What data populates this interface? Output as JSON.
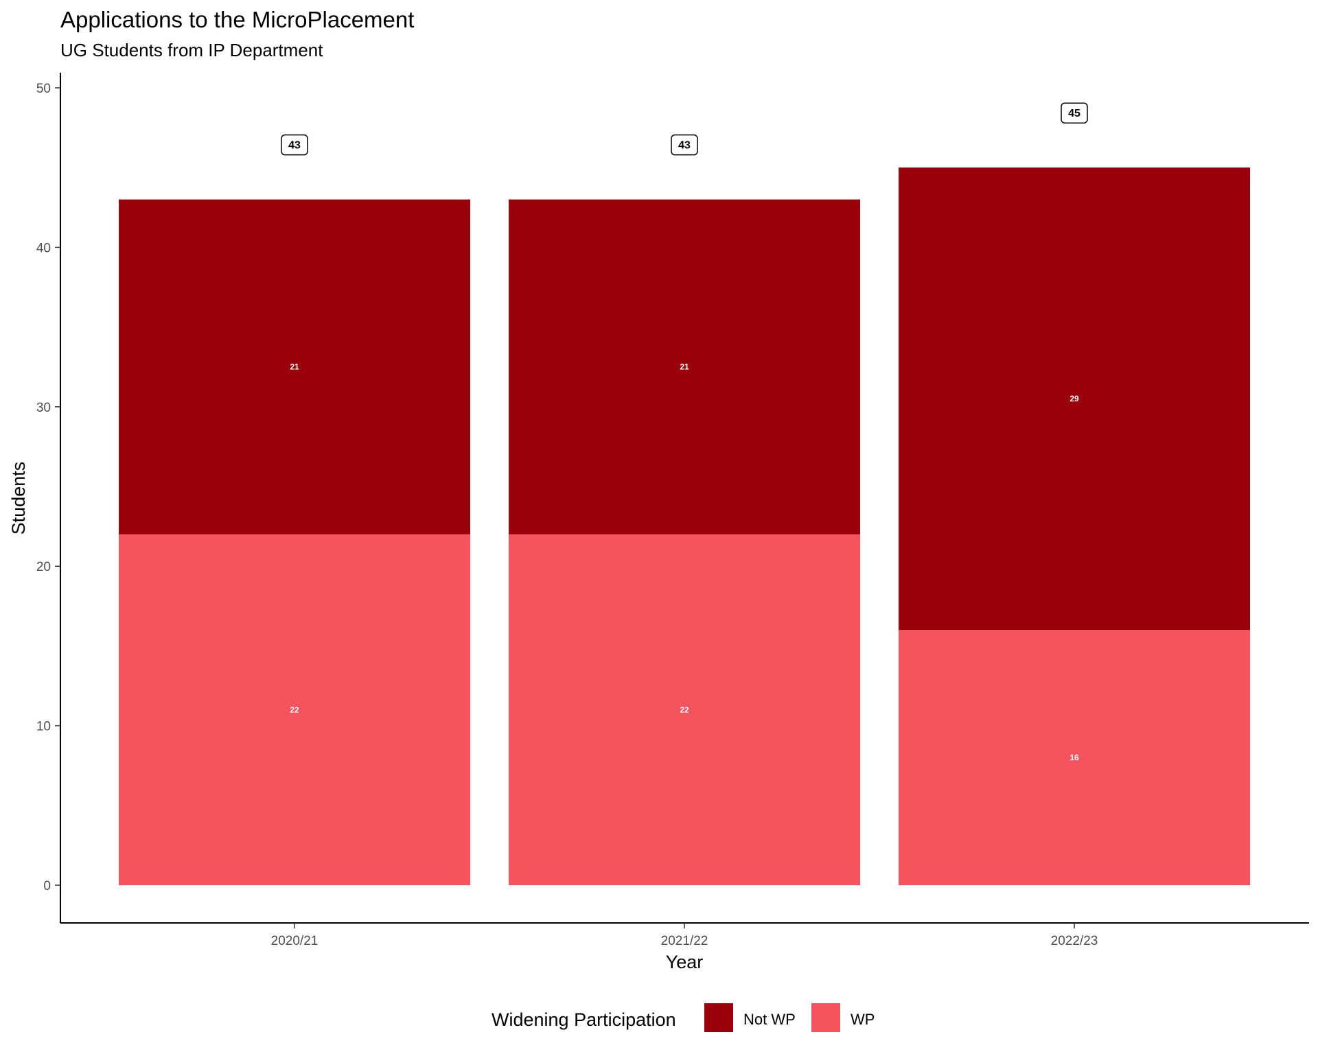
{
  "chart_data": {
    "type": "bar",
    "stacked": true,
    "title": "Applications to the MicroPlacement",
    "subtitle": "UG Students from IP Department",
    "xlabel": "Year",
    "ylabel": "Students",
    "categories": [
      "2020/21",
      "2021/22",
      "2022/23"
    ],
    "series": [
      {
        "name": "WP",
        "values": [
          22,
          22,
          16
        ],
        "color": "#f5535e"
      },
      {
        "name": "Not WP",
        "values": [
          21,
          21,
          29
        ],
        "color": "#990009"
      }
    ],
    "totals": [
      43,
      43,
      45
    ],
    "ylim": [
      0,
      50
    ],
    "yticks": [
      0,
      10,
      20,
      30,
      40,
      50
    ],
    "grid": false,
    "legend": {
      "title": "Widening Participation",
      "position": "bottom",
      "entries": [
        {
          "label": "Not WP",
          "color": "#990009"
        },
        {
          "label": "WP",
          "color": "#f5535e"
        }
      ]
    }
  }
}
